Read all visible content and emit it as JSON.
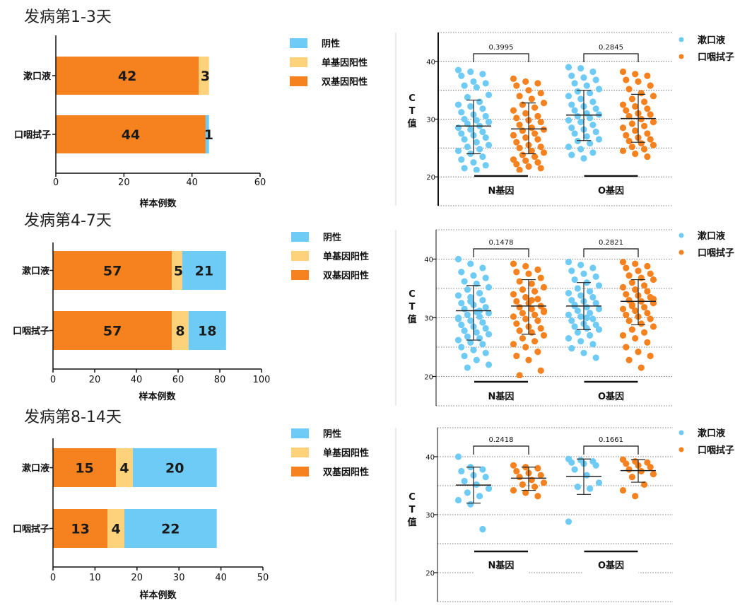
{
  "panels": [
    {
      "title": "发病第1-3天",
      "bar_legend": [
        "阴性",
        "单基因阳性",
        "双基因阳性"
      ],
      "scatter_legend": [
        "漱口液",
        "口咽拭子"
      ]
    },
    {
      "title": "发病第4-7天",
      "bar_legend": [
        "阴性",
        "单基因阳性",
        "双基因阳性"
      ],
      "scatter_legend": [
        "漱口液",
        "口咽拭子"
      ]
    },
    {
      "title": "发病第8-14天",
      "bar_legend": [
        "阴性",
        "单基因阳性",
        "双基因阳性"
      ],
      "scatter_legend": [
        "漱口液",
        "口咽拭子"
      ]
    }
  ],
  "colors": {
    "negative": "#6ecbf5",
    "single": "#fdd27a",
    "double": "#f5821f",
    "mouthwash": "#6ecbf5",
    "swab": "#f5821f"
  },
  "chart_data": [
    {
      "type": "bar",
      "orientation": "horizontal",
      "stacked": true,
      "categories": [
        "漱口液",
        "口咽拭子"
      ],
      "series": [
        {
          "name": "双基因阳性",
          "values": [
            42,
            44
          ]
        },
        {
          "name": "单基因阳性",
          "values": [
            3,
            0
          ]
        },
        {
          "name": "阴性",
          "values": [
            0,
            1
          ]
        }
      ],
      "labels": [
        [
          "42",
          "3",
          ""
        ],
        [
          "44",
          "",
          "1"
        ]
      ],
      "xlabel": "样本例数",
      "xlim": [
        0,
        60
      ],
      "xticks": [
        0,
        20,
        40,
        60
      ]
    },
    {
      "type": "bar",
      "orientation": "horizontal",
      "stacked": true,
      "categories": [
        "漱口液",
        "口咽拭子"
      ],
      "series": [
        {
          "name": "双基因阳性",
          "values": [
            57,
            57
          ]
        },
        {
          "name": "单基因阳性",
          "values": [
            5,
            8
          ]
        },
        {
          "name": "阴性",
          "values": [
            21,
            18
          ]
        }
      ],
      "labels": [
        [
          "57",
          "5",
          "21"
        ],
        [
          "57",
          "8",
          "18"
        ]
      ],
      "xlabel": "样本例数",
      "xlim": [
        0,
        100
      ],
      "xticks": [
        0,
        20,
        40,
        60,
        80,
        100
      ]
    },
    {
      "type": "bar",
      "orientation": "horizontal",
      "stacked": true,
      "categories": [
        "漱口液",
        "口咽拭子"
      ],
      "series": [
        {
          "name": "双基因阳性",
          "values": [
            15,
            13
          ]
        },
        {
          "name": "单基因阳性",
          "values": [
            4,
            4
          ]
        },
        {
          "name": "阴性",
          "values": [
            20,
            22
          ]
        }
      ],
      "labels": [
        [
          "15",
          "4",
          "20"
        ],
        [
          "13",
          "4",
          "22"
        ]
      ],
      "xlabel": "样本例数",
      "xlim": [
        0,
        50
      ],
      "xticks": [
        0,
        10,
        20,
        30,
        40,
        50
      ]
    },
    {
      "type": "scatter",
      "ylabel": "C T 值",
      "ylim": [
        15,
        45
      ],
      "yticks": [
        20,
        30,
        40
      ],
      "groups": [
        "N基因",
        "O基因"
      ],
      "series": [
        {
          "name": "漱口液",
          "group": "N基因",
          "mean": 28.8,
          "sd_low": 24.0,
          "sd_high": 33.3,
          "values": [
            38.5,
            38.2,
            37.8,
            37.5,
            36.5,
            36.2,
            35.8,
            35.5,
            34.2,
            33.8,
            33.0,
            32.5,
            32.2,
            31.8,
            31.2,
            30.8,
            30.5,
            30.0,
            29.8,
            29.5,
            29.2,
            28.8,
            28.5,
            28.2,
            27.8,
            27.5,
            27.2,
            26.8,
            26.5,
            26.0,
            25.5,
            25.2,
            24.8,
            24.5,
            24.0,
            23.5,
            23.0,
            22.5,
            22.0,
            21.5,
            21.2
          ]
        },
        {
          "name": "口咽拭子",
          "group": "N基因",
          "mean": 28.3,
          "sd_low": 24.0,
          "sd_high": 32.8,
          "values": [
            37.0,
            36.5,
            36.2,
            35.8,
            35.0,
            34.5,
            34.0,
            33.5,
            32.8,
            32.5,
            32.0,
            31.5,
            31.0,
            30.5,
            30.2,
            29.8,
            29.5,
            29.0,
            28.5,
            28.2,
            28.0,
            27.5,
            27.2,
            26.8,
            26.5,
            26.0,
            25.5,
            25.2,
            25.0,
            24.5,
            24.2,
            23.8,
            23.5,
            23.0,
            22.8,
            22.5,
            22.2,
            21.8,
            21.5,
            21.2
          ]
        },
        {
          "name": "漱口液",
          "group": "O基因",
          "mean": 30.7,
          "sd_low": 26.3,
          "sd_high": 35.0,
          "values": [
            39.0,
            38.8,
            38.2,
            37.5,
            37.2,
            36.8,
            36.2,
            35.8,
            35.2,
            34.8,
            34.5,
            34.0,
            33.5,
            33.0,
            32.5,
            32.2,
            31.8,
            31.5,
            31.0,
            30.8,
            30.5,
            30.2,
            29.8,
            29.5,
            29.0,
            28.5,
            28.2,
            27.8,
            27.5,
            27.0,
            26.5,
            26.2,
            25.8,
            25.2,
            24.8,
            24.2,
            23.8,
            23.2
          ]
        },
        {
          "name": "口咽拭子",
          "group": "O基因",
          "mean": 30.1,
          "sd_low": 26.0,
          "sd_high": 34.3,
          "values": [
            38.2,
            37.8,
            37.5,
            36.8,
            36.5,
            35.8,
            35.2,
            34.5,
            34.0,
            33.5,
            33.0,
            32.5,
            32.2,
            31.8,
            31.5,
            31.0,
            30.8,
            30.5,
            30.0,
            29.5,
            29.2,
            28.8,
            28.5,
            28.0,
            27.5,
            27.2,
            26.8,
            26.5,
            26.2,
            25.8,
            25.5,
            25.2,
            24.8,
            24.5,
            24.0,
            23.5
          ]
        }
      ],
      "pvalues": [
        "0.3995",
        "0.2845"
      ],
      "grid": true,
      "legend": "top-right"
    },
    {
      "type": "scatter",
      "ylabel": "C T 值",
      "ylim": [
        15,
        45
      ],
      "yticks": [
        20,
        30,
        40
      ],
      "groups": [
        "N基因",
        "O基因"
      ],
      "series": [
        {
          "name": "漱口液",
          "group": "N基因",
          "mean": 31.2,
          "sd_low": 26.2,
          "sd_high": 35.5,
          "values": [
            40.0,
            39.2,
            38.5,
            37.8,
            37.2,
            36.8,
            36.2,
            35.8,
            35.2,
            34.8,
            34.2,
            33.8,
            33.5,
            33.0,
            32.5,
            32.2,
            31.8,
            31.5,
            31.0,
            30.8,
            30.5,
            30.2,
            29.8,
            29.5,
            29.2,
            28.8,
            28.5,
            28.2,
            27.8,
            27.5,
            27.2,
            26.8,
            26.5,
            26.2,
            25.8,
            25.5,
            25.0,
            24.5,
            24.0,
            23.5,
            22.8,
            22.0,
            21.5,
            31.2,
            30.0,
            32.8
          ]
        },
        {
          "name": "口咽拭子",
          "group": "N基因",
          "mean": 32.0,
          "sd_low": 27.2,
          "sd_high": 36.5,
          "values": [
            39.2,
            38.8,
            38.2,
            37.8,
            37.5,
            36.8,
            36.2,
            35.8,
            35.2,
            34.8,
            34.5,
            34.0,
            33.5,
            33.2,
            32.8,
            32.5,
            32.0,
            31.8,
            31.5,
            31.2,
            30.8,
            30.5,
            30.2,
            29.8,
            29.5,
            29.0,
            28.5,
            28.2,
            27.8,
            27.5,
            27.0,
            26.5,
            26.0,
            25.5,
            25.0,
            24.2,
            23.5,
            22.8,
            21.0,
            20.2,
            33.0,
            31.0
          ]
        },
        {
          "name": "漱口液",
          "group": "O基因",
          "mean": 32.0,
          "sd_low": 28.0,
          "sd_high": 36.0,
          "values": [
            39.5,
            39.0,
            38.5,
            38.0,
            37.5,
            37.0,
            36.5,
            36.0,
            35.5,
            35.0,
            34.5,
            34.2,
            33.8,
            33.5,
            33.0,
            32.8,
            32.5,
            32.2,
            31.8,
            31.5,
            31.2,
            30.8,
            30.5,
            30.2,
            29.8,
            29.5,
            29.0,
            28.8,
            28.5,
            28.2,
            28.0,
            27.5,
            27.0,
            26.5,
            26.0,
            25.5,
            24.8,
            24.0,
            23.2,
            32.0,
            30.0
          ]
        },
        {
          "name": "口咽拭子",
          "group": "O基因",
          "mean": 32.8,
          "sd_low": 28.8,
          "sd_high": 36.5,
          "values": [
            39.5,
            39.2,
            38.8,
            38.5,
            38.0,
            37.5,
            37.2,
            36.8,
            36.5,
            36.0,
            35.5,
            35.2,
            34.8,
            34.5,
            34.0,
            33.8,
            33.5,
            33.0,
            32.8,
            32.5,
            32.2,
            31.8,
            31.5,
            31.2,
            30.8,
            30.5,
            30.2,
            29.8,
            29.5,
            29.0,
            28.5,
            28.0,
            27.5,
            27.0,
            26.5,
            25.8,
            25.0,
            24.2,
            23.5,
            22.8,
            21.5,
            33.2,
            32.0
          ]
        }
      ],
      "pvalues": [
        "0.1478",
        "0.2821"
      ],
      "grid": true,
      "legend": "top-right"
    },
    {
      "type": "scatter",
      "ylabel": "C T 值",
      "ylim": [
        15,
        45
      ],
      "yticks": [
        20,
        30,
        40
      ],
      "groups": [
        "N基因",
        "O基因"
      ],
      "series": [
        {
          "name": "漱口液",
          "group": "N基因",
          "mean": 35.1,
          "sd_low": 32.0,
          "sd_high": 38.2,
          "values": [
            40.0,
            38.2,
            37.8,
            37.5,
            36.8,
            36.5,
            35.8,
            35.2,
            34.5,
            33.8,
            33.2,
            32.5,
            31.8,
            27.5
          ]
        },
        {
          "name": "口咽拭子",
          "group": "N基因",
          "mean": 36.3,
          "sd_low": 34.2,
          "sd_high": 38.2,
          "values": [
            38.5,
            38.2,
            38.0,
            37.5,
            37.2,
            36.8,
            36.5,
            36.0,
            35.5,
            35.2,
            34.8,
            34.2,
            33.8,
            33.2
          ]
        },
        {
          "name": "漱口液",
          "group": "O基因",
          "mean": 36.6,
          "sd_low": 33.5,
          "sd_high": 39.6,
          "values": [
            39.6,
            39.4,
            39.2,
            39.0,
            38.8,
            38.5,
            37.8,
            36.8,
            35.5,
            34.8,
            34.5,
            28.8
          ]
        },
        {
          "name": "口咽拭子",
          "group": "O基因",
          "mean": 37.6,
          "sd_low": 35.6,
          "sd_high": 39.5,
          "values": [
            39.5,
            39.2,
            39.0,
            38.8,
            38.5,
            38.2,
            37.8,
            37.5,
            37.0,
            36.5,
            35.2,
            34.2,
            33.2
          ]
        }
      ],
      "pvalues": [
        "0.2418",
        "0.1661"
      ],
      "grid": true,
      "legend": "top-right"
    }
  ]
}
